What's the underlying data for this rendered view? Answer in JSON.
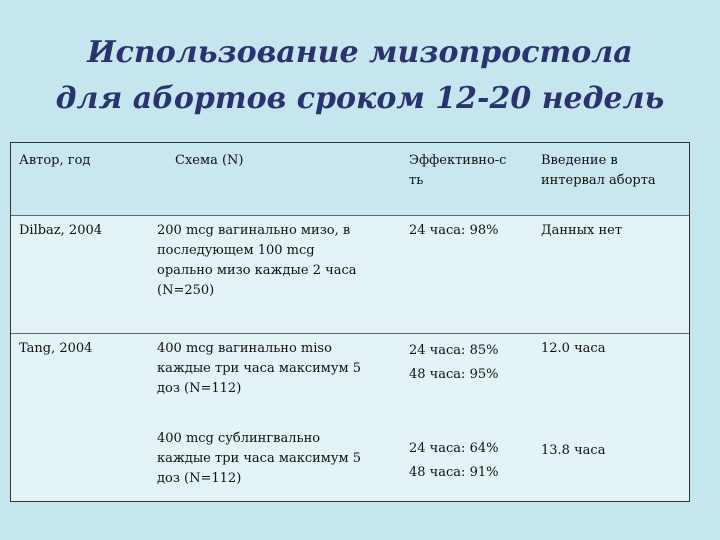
{
  "title": {
    "line1": "Использование мизопростола",
    "line2": "для абортов сроком 12-20 недель"
  },
  "table": {
    "headers": {
      "author": "Автор, год",
      "scheme": "Схема (N)",
      "efficacy_1": "Эффективно-с",
      "efficacy_2": "ть",
      "interval_1": "Введение в",
      "interval_2": "интервал аборта"
    },
    "rows": [
      {
        "author": "Dilbaz, 2004",
        "scheme": [
          "200 mcg вагинально мизо, в",
          "последующем 100 mcg",
          "орально мизо каждые 2 часа",
          "(N=250)"
        ],
        "efficacy": [
          "24 часа: 98%"
        ],
        "interval": "Данных нет"
      },
      {
        "author": "Tang, 2004",
        "scheme_a": [
          "400 mcg вагинально miso",
          "каждые три часа максимум 5",
          "доз (N=112)"
        ],
        "efficacy_a": [
          "24 часа: 85%",
          "48 часа: 95%"
        ],
        "interval_a": "12.0 часа",
        "scheme_b": [
          "400 mcg сублингвально",
          "каждые три часа максимум 5",
          "доз (N=112)"
        ],
        "efficacy_b": [
          "24 часа: 64%",
          "48 часа: 91%"
        ],
        "interval_b": "13.8 часа"
      }
    ]
  }
}
